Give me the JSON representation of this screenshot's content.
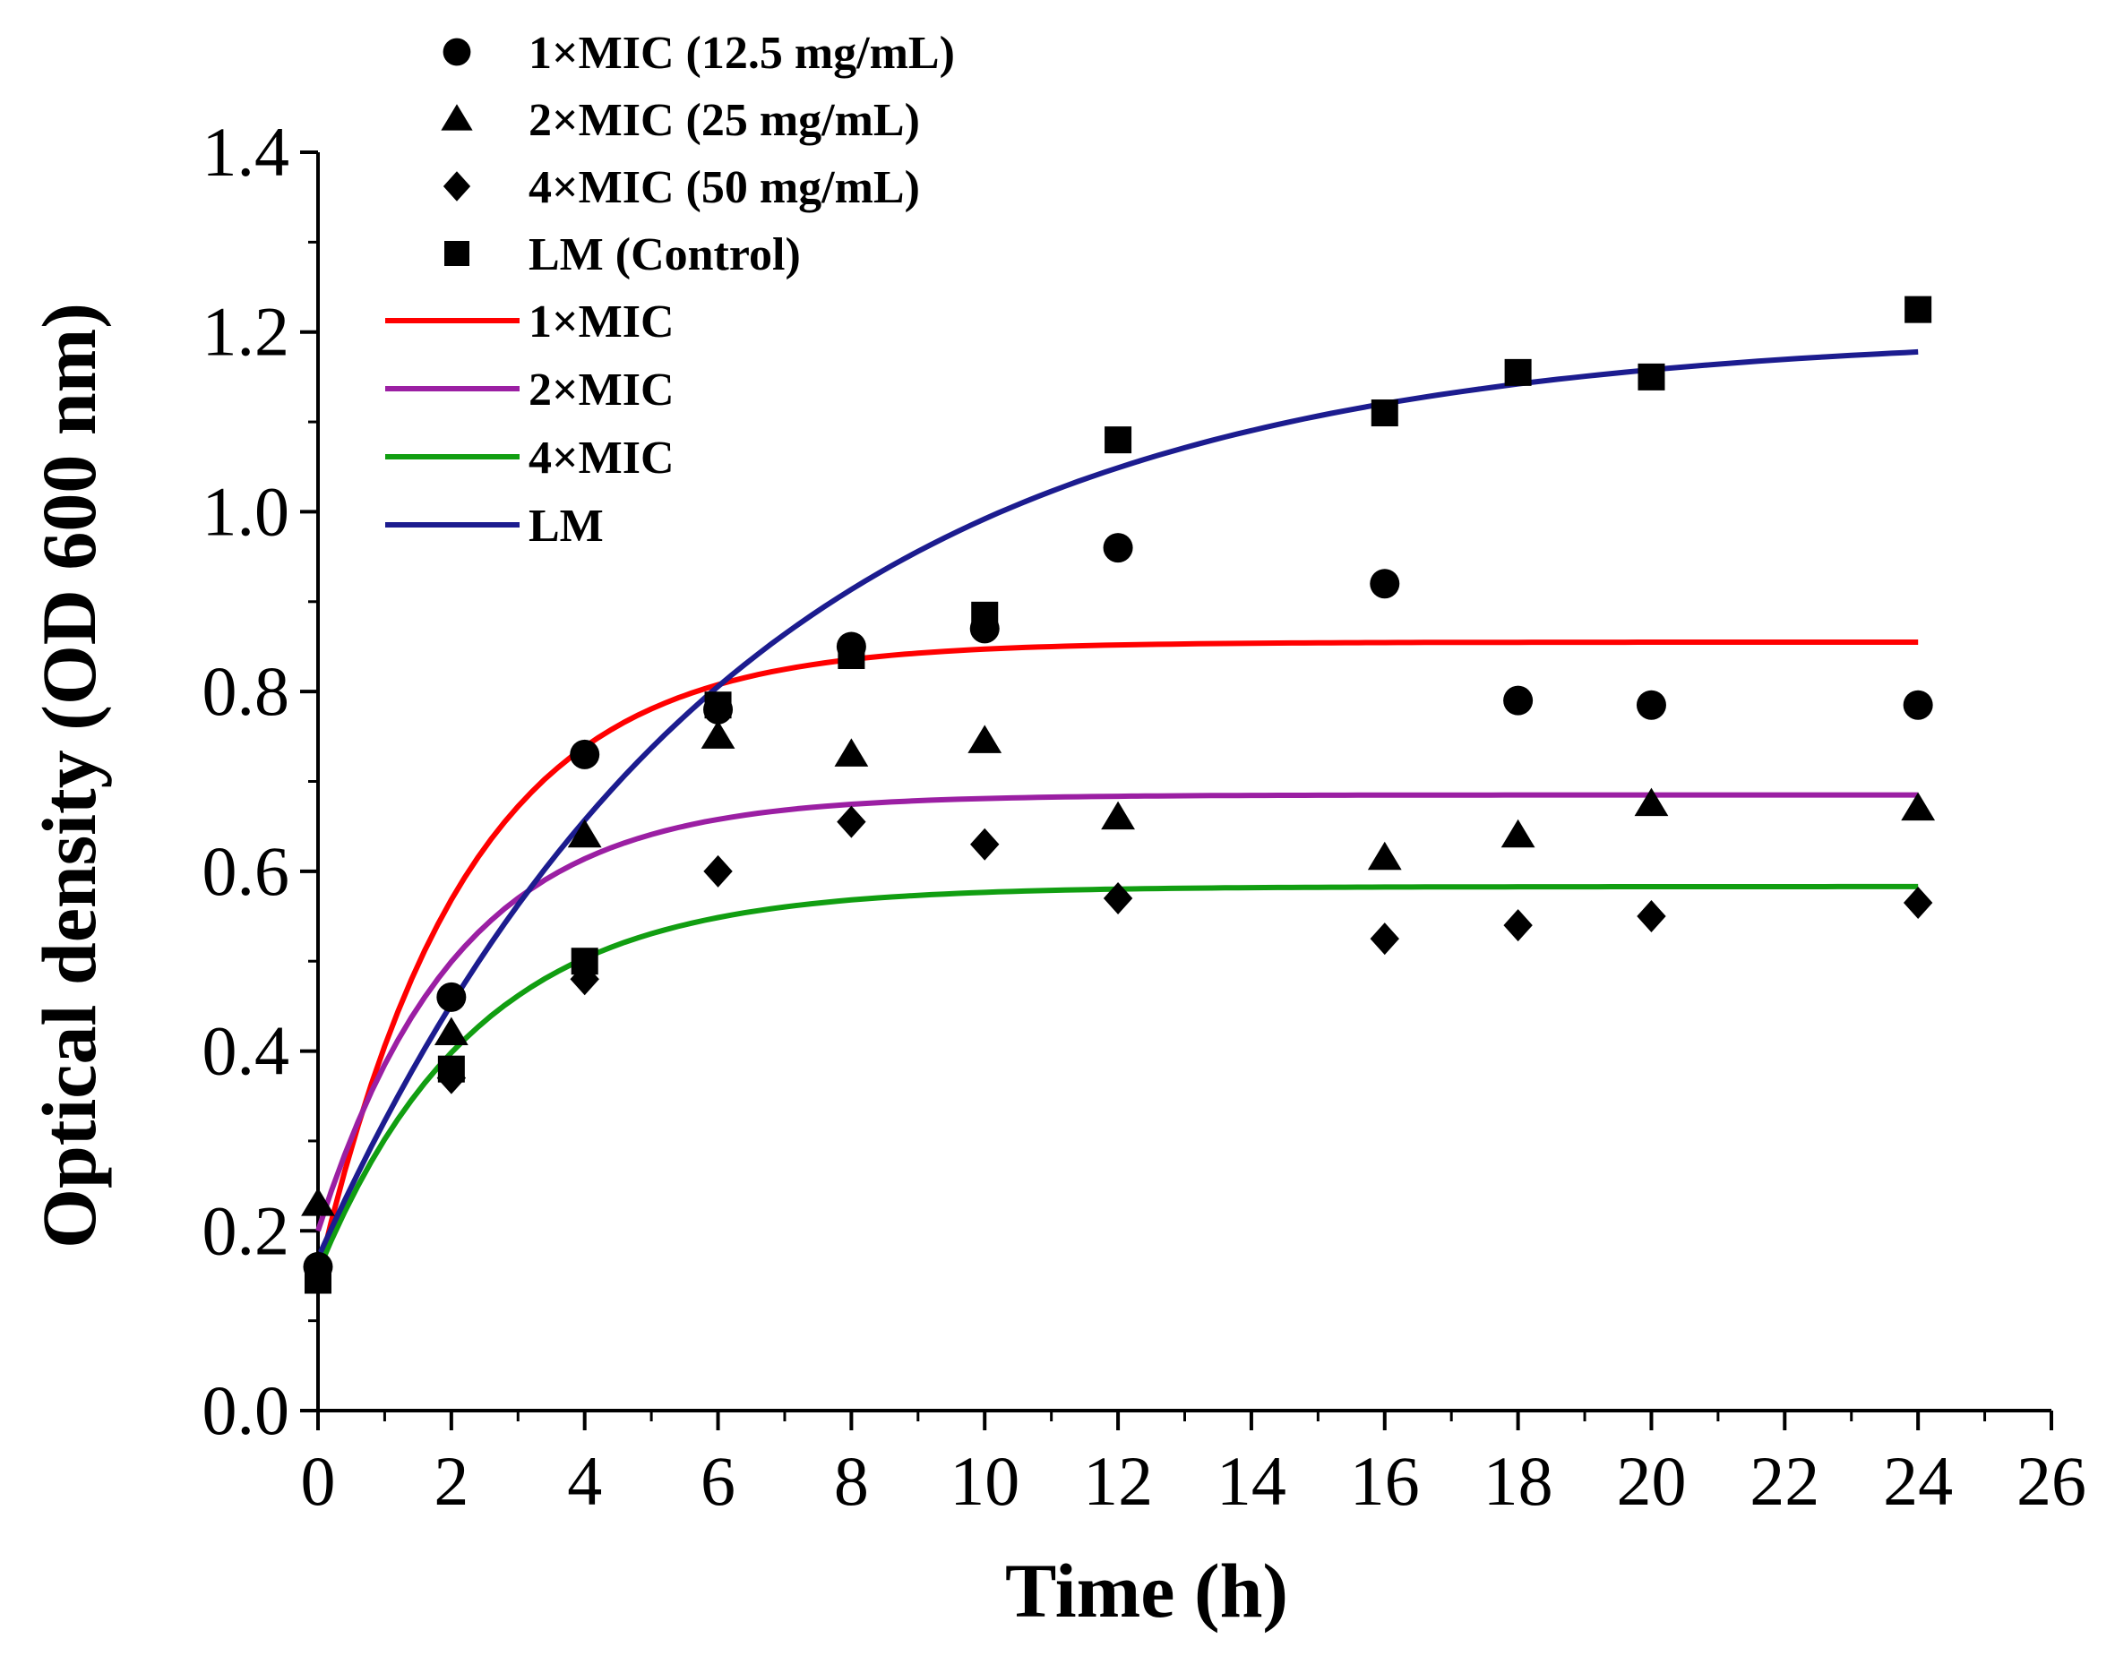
{
  "chart_data": {
    "type": "scatter",
    "title": "",
    "xlabel": "Time (h)",
    "ylabel": "Optical density (OD 600 nm)",
    "xlim": [
      0,
      26
    ],
    "ylim": [
      0.0,
      1.4
    ],
    "xticks": [
      0,
      2,
      4,
      6,
      8,
      10,
      12,
      14,
      16,
      18,
      20,
      22,
      24,
      26
    ],
    "yticks": [
      0.0,
      0.2,
      0.4,
      0.6,
      0.8,
      1.0,
      1.2,
      1.4
    ],
    "xtick_labels": [
      "0",
      "2",
      "4",
      "6",
      "8",
      "10",
      "12",
      "14",
      "16",
      "18",
      "20",
      "22",
      "24",
      "26"
    ],
    "ytick_labels": [
      "0.0",
      "0.2",
      "0.4",
      "0.6",
      "0.8",
      "1.0",
      "1.2",
      "1.4"
    ],
    "grid": false,
    "legend_position": "top-left",
    "x": [
      0,
      2,
      4,
      6,
      8,
      10,
      12,
      16,
      18,
      20,
      24
    ],
    "series": [
      {
        "name": "1×MIC (12.5 mg/mL)",
        "marker": "circle",
        "values": [
          0.16,
          0.46,
          0.73,
          0.78,
          0.85,
          0.87,
          0.96,
          0.92,
          0.79,
          0.785,
          0.785
        ]
      },
      {
        "name": "2×MIC (25 mg/mL)",
        "marker": "triangle",
        "values": [
          0.23,
          0.42,
          0.64,
          0.75,
          0.73,
          0.745,
          0.66,
          0.615,
          0.64,
          0.675,
          0.67
        ]
      },
      {
        "name": "4×MIC (50 mg/mL)",
        "marker": "diamond",
        "values": [
          0.16,
          0.37,
          0.48,
          0.6,
          0.655,
          0.63,
          0.57,
          0.525,
          0.54,
          0.55,
          0.565
        ]
      },
      {
        "name": "LM (Control)",
        "marker": "square",
        "values": [
          0.145,
          0.38,
          0.5,
          0.785,
          0.84,
          0.885,
          1.08,
          1.11,
          1.155,
          1.15,
          1.225
        ]
      }
    ],
    "fits": [
      {
        "name": "1×MIC",
        "color": "#ff0000",
        "model": {
          "a": 0.855,
          "y0": 0.15,
          "k": 0.45
        }
      },
      {
        "name": "2×MIC",
        "color": "#9b1fa3",
        "model": {
          "a": 0.685,
          "y0": 0.2,
          "k": 0.48
        }
      },
      {
        "name": "4×MIC",
        "color": "#119e11",
        "model": {
          "a": 0.583,
          "y0": 0.155,
          "k": 0.42
        }
      },
      {
        "name": "LM",
        "color": "#1c1c8f",
        "model": {
          "a": 1.2,
          "y0": 0.17,
          "k": 0.16
        }
      }
    ]
  }
}
